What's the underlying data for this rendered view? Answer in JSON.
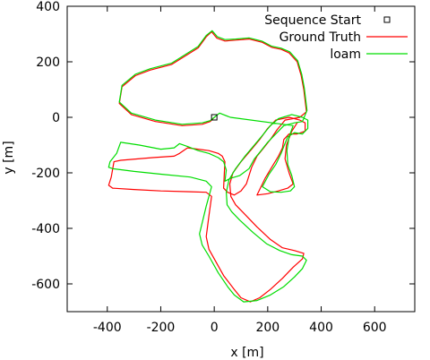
{
  "chart_data": {
    "type": "line",
    "title": "",
    "xlabel": "x [m]",
    "ylabel": "y [m]",
    "xlim": [
      -550,
      750
    ],
    "ylim": [
      -700,
      400
    ],
    "xticks": [
      -400,
      -200,
      0,
      200,
      400,
      600
    ],
    "yticks": [
      -600,
      -400,
      -200,
      0,
      200,
      400
    ],
    "grid": false,
    "legend": {
      "placement": "top-right"
    },
    "start": {
      "name": "Sequence Start",
      "x": 0,
      "y": 0,
      "marker": "square"
    },
    "series": [
      {
        "name": "Ground Truth",
        "color": "#ff0000",
        "points": [
          [
            0,
            0
          ],
          [
            -15,
            -15
          ],
          [
            -45,
            -25
          ],
          [
            -120,
            -30
          ],
          [
            -220,
            -15
          ],
          [
            -310,
            10
          ],
          [
            -355,
            50
          ],
          [
            -345,
            110
          ],
          [
            -295,
            150
          ],
          [
            -240,
            170
          ],
          [
            -160,
            190
          ],
          [
            -60,
            250
          ],
          [
            -30,
            290
          ],
          [
            -10,
            308
          ],
          [
            10,
            285
          ],
          [
            40,
            275
          ],
          [
            80,
            278
          ],
          [
            130,
            282
          ],
          [
            180,
            270
          ],
          [
            215,
            252
          ],
          [
            250,
            245
          ],
          [
            280,
            232
          ],
          [
            310,
            200
          ],
          [
            325,
            150
          ],
          [
            335,
            100
          ],
          [
            340,
            60
          ],
          [
            345,
            20
          ],
          [
            320,
            0
          ],
          [
            265,
            -10
          ],
          [
            235,
            -45
          ],
          [
            210,
            -80
          ],
          [
            185,
            -110
          ],
          [
            160,
            -140
          ],
          [
            140,
            -180
          ],
          [
            120,
            -240
          ],
          [
            100,
            -265
          ],
          [
            75,
            -280
          ],
          [
            50,
            -270
          ],
          [
            35,
            -255
          ],
          [
            38,
            -195
          ],
          [
            40,
            -160
          ],
          [
            30,
            -140
          ],
          [
            15,
            -130
          ],
          [
            -20,
            -120
          ],
          [
            -60,
            -115
          ],
          [
            -100,
            -110
          ],
          [
            -130,
            -130
          ],
          [
            -150,
            -140
          ],
          [
            -230,
            -145
          ],
          [
            -290,
            -150
          ],
          [
            -350,
            -155
          ],
          [
            -375,
            -160
          ],
          [
            -385,
            -215
          ],
          [
            -395,
            -245
          ],
          [
            -380,
            -255
          ],
          [
            -300,
            -260
          ],
          [
            -200,
            -265
          ],
          [
            -90,
            -268
          ],
          [
            -30,
            -270
          ],
          [
            -10,
            -285
          ],
          [
            -20,
            -355
          ],
          [
            -30,
            -430
          ],
          [
            -20,
            -475
          ],
          [
            0,
            -510
          ],
          [
            35,
            -570
          ],
          [
            75,
            -620
          ],
          [
            100,
            -650
          ],
          [
            135,
            -665
          ],
          [
            170,
            -650
          ],
          [
            210,
            -620
          ],
          [
            255,
            -580
          ],
          [
            295,
            -540
          ],
          [
            330,
            -510
          ],
          [
            335,
            -490
          ],
          [
            300,
            -480
          ],
          [
            255,
            -470
          ],
          [
            210,
            -440
          ],
          [
            160,
            -395
          ],
          [
            110,
            -345
          ],
          [
            80,
            -315
          ],
          [
            62,
            -285
          ],
          [
            58,
            -240
          ],
          [
            70,
            -200
          ],
          [
            100,
            -160
          ],
          [
            140,
            -115
          ],
          [
            170,
            -80
          ],
          [
            200,
            -40
          ],
          [
            230,
            -10
          ],
          [
            280,
            0
          ],
          [
            320,
            -10
          ],
          [
            340,
            -20
          ],
          [
            340,
            -50
          ],
          [
            310,
            -60
          ],
          [
            280,
            -60
          ],
          [
            260,
            -80
          ],
          [
            255,
            -110
          ],
          [
            240,
            -140
          ],
          [
            215,
            -180
          ],
          [
            190,
            -220
          ],
          [
            160,
            -280
          ],
          [
            200,
            -275
          ],
          [
            240,
            -265
          ],
          [
            275,
            -255
          ],
          [
            295,
            -240
          ],
          [
            280,
            -200
          ],
          [
            265,
            -150
          ],
          [
            270,
            -100
          ],
          [
            290,
            -50
          ],
          [
            310,
            -20
          ]
        ]
      },
      {
        "name": "loam",
        "color": "#00dd00",
        "points": [
          [
            0,
            0
          ],
          [
            -15,
            -12
          ],
          [
            -45,
            -20
          ],
          [
            -120,
            -25
          ],
          [
            -220,
            -10
          ],
          [
            -310,
            15
          ],
          [
            -355,
            55
          ],
          [
            -345,
            115
          ],
          [
            -295,
            155
          ],
          [
            -240,
            175
          ],
          [
            -160,
            195
          ],
          [
            -60,
            255
          ],
          [
            -30,
            295
          ],
          [
            -8,
            312
          ],
          [
            12,
            290
          ],
          [
            40,
            280
          ],
          [
            80,
            282
          ],
          [
            130,
            286
          ],
          [
            180,
            274
          ],
          [
            215,
            256
          ],
          [
            250,
            249
          ],
          [
            282,
            236
          ],
          [
            312,
            204
          ],
          [
            327,
            155
          ],
          [
            337,
            105
          ],
          [
            342,
            65
          ],
          [
            347,
            25
          ],
          [
            330,
            -15
          ],
          [
            300,
            -20
          ],
          [
            260,
            -30
          ],
          [
            230,
            -60
          ],
          [
            200,
            -90
          ],
          [
            175,
            -120
          ],
          [
            150,
            -150
          ],
          [
            130,
            -185
          ],
          [
            95,
            -210
          ],
          [
            60,
            -220
          ],
          [
            40,
            -230
          ],
          [
            45,
            -190
          ],
          [
            35,
            -160
          ],
          [
            15,
            -145
          ],
          [
            -20,
            -130
          ],
          [
            -60,
            -120
          ],
          [
            -100,
            -105
          ],
          [
            -130,
            -95
          ],
          [
            -150,
            -110
          ],
          [
            -200,
            -115
          ],
          [
            -280,
            -100
          ],
          [
            -350,
            -90
          ],
          [
            -365,
            -130
          ],
          [
            -390,
            -160
          ],
          [
            -395,
            -180
          ],
          [
            -380,
            -185
          ],
          [
            -300,
            -195
          ],
          [
            -200,
            -205
          ],
          [
            -90,
            -215
          ],
          [
            -30,
            -230
          ],
          [
            -10,
            -250
          ],
          [
            -30,
            -320
          ],
          [
            -45,
            -380
          ],
          [
            -55,
            -420
          ],
          [
            -45,
            -460
          ],
          [
            -20,
            -500
          ],
          [
            15,
            -560
          ],
          [
            50,
            -610
          ],
          [
            75,
            -640
          ],
          [
            110,
            -665
          ],
          [
            160,
            -660
          ],
          [
            210,
            -640
          ],
          [
            260,
            -610
          ],
          [
            300,
            -575
          ],
          [
            330,
            -545
          ],
          [
            345,
            -515
          ],
          [
            330,
            -500
          ],
          [
            290,
            -495
          ],
          [
            245,
            -480
          ],
          [
            195,
            -455
          ],
          [
            145,
            -415
          ],
          [
            95,
            -370
          ],
          [
            65,
            -340
          ],
          [
            48,
            -315
          ],
          [
            45,
            -270
          ],
          [
            55,
            -225
          ],
          [
            80,
            -185
          ],
          [
            115,
            -140
          ],
          [
            150,
            -100
          ],
          [
            180,
            -65
          ],
          [
            210,
            -30
          ],
          [
            240,
            -5
          ],
          [
            290,
            10
          ],
          [
            330,
            0
          ],
          [
            350,
            -10
          ],
          [
            350,
            -40
          ],
          [
            330,
            -60
          ],
          [
            300,
            -55
          ],
          [
            275,
            -70
          ],
          [
            262,
            -100
          ],
          [
            250,
            -130
          ],
          [
            230,
            -170
          ],
          [
            205,
            -205
          ],
          [
            180,
            -250
          ],
          [
            210,
            -268
          ],
          [
            250,
            -270
          ],
          [
            285,
            -265
          ],
          [
            300,
            -250
          ],
          [
            290,
            -210
          ],
          [
            275,
            -170
          ],
          [
            272,
            -120
          ],
          [
            280,
            -70
          ],
          [
            295,
            -30
          ],
          [
            60,
            0
          ],
          [
            20,
            15
          ],
          [
            0,
            0
          ]
        ]
      }
    ]
  }
}
